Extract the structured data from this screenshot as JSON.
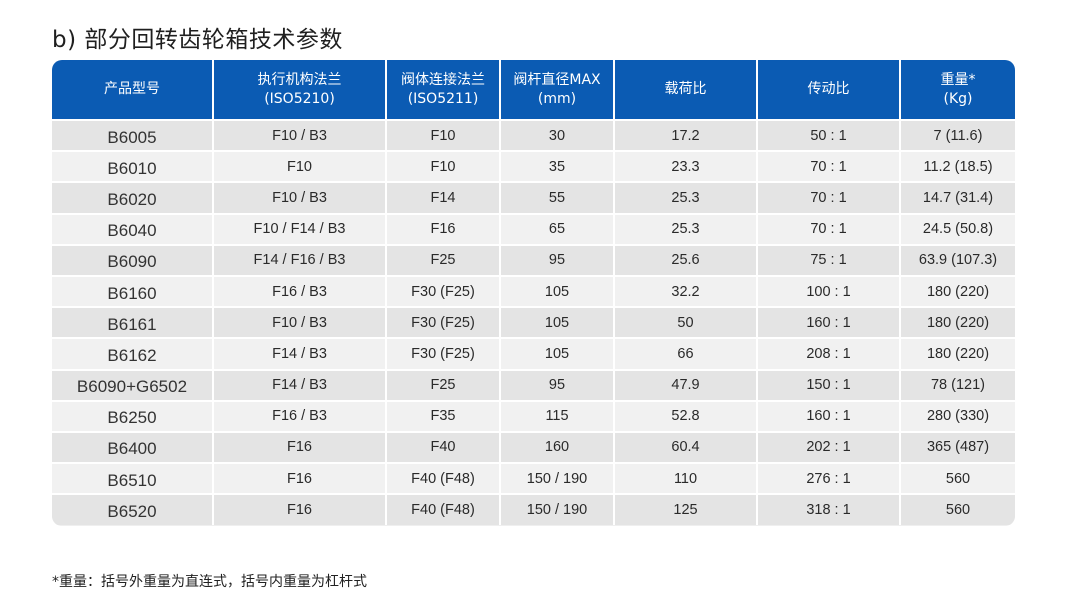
{
  "title": "b) 部分回转齿轮箱技术参数",
  "table": {
    "headers": [
      {
        "line1": "产品型号",
        "line2": ""
      },
      {
        "line1": "执行机构法兰",
        "line2": "(ISO5210)"
      },
      {
        "line1": "阀体连接法兰",
        "line2": "(ISO5211)"
      },
      {
        "line1": "阀杆直径MAX",
        "line2": "(mm)"
      },
      {
        "line1": "载荷比",
        "line2": ""
      },
      {
        "line1": "传动比",
        "line2": ""
      },
      {
        "line1": "重量*",
        "line2": "(Kg)"
      }
    ],
    "rows": [
      [
        "B6005",
        "F10 / B3",
        "F10",
        "30",
        "17.2",
        "50 : 1",
        "7 (11.6)"
      ],
      [
        "B6010",
        "F10",
        "F10",
        "35",
        "23.3",
        "70 : 1",
        "11.2 (18.5)"
      ],
      [
        "B6020",
        "F10 / B3",
        "F14",
        "55",
        "25.3",
        "70 : 1",
        "14.7 (31.4)"
      ],
      [
        "B6040",
        "F10 / F14 / B3",
        "F16",
        "65",
        "25.3",
        "70 : 1",
        "24.5 (50.8)"
      ],
      [
        "B6090",
        "F14 / F16 / B3",
        "F25",
        "95",
        "25.6",
        "75 : 1",
        "63.9 (107.3)"
      ],
      [
        "B6160",
        "F16 / B3",
        "F30 (F25)",
        "105",
        "32.2",
        "100 : 1",
        "180 (220)"
      ],
      [
        "B6161",
        "F10 / B3",
        "F30 (F25)",
        "105",
        "50",
        "160 : 1",
        "180 (220)"
      ],
      [
        "B6162",
        "F14 / B3",
        "F30 (F25)",
        "105",
        "66",
        "208 : 1",
        "180 (220)"
      ],
      [
        "B6090+G6502",
        "F14 / B3",
        "F25",
        "95",
        "47.9",
        "150 : 1",
        "78 (121)"
      ],
      [
        "B6250",
        "F16 / B3",
        "F35",
        "115",
        "52.8",
        "160 : 1",
        "280 (330)"
      ],
      [
        "B6400",
        "F16",
        "F40",
        "160",
        "60.4",
        "202 : 1",
        "365 (487)"
      ],
      [
        "B6510",
        "F16",
        "F40 (F48)",
        "150 / 190",
        "110",
        "276 : 1",
        "560"
      ],
      [
        "B6520",
        "F16",
        "F40 (F48)",
        "150 / 190",
        "125",
        "318 : 1",
        "560"
      ]
    ]
  },
  "footnote": "*重量：括号外重量为直连式，括号内重量为杠杆式",
  "colors": {
    "header_bg": "#0b5bb3",
    "header_text": "#ffffff",
    "row_odd": "#e4e4e4",
    "row_even": "#f1f1f1"
  }
}
